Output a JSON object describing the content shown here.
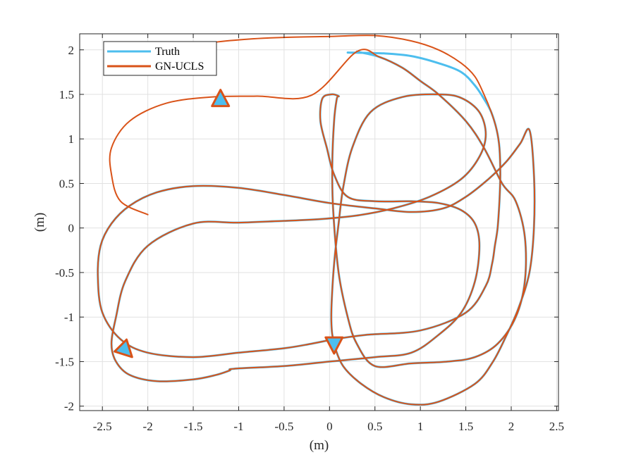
{
  "chart_data": {
    "type": "line",
    "title": "",
    "xlabel": "(m)",
    "ylabel": "(m)",
    "xlim": [
      -2.75,
      2.52
    ],
    "ylim": [
      -2.05,
      2.18
    ],
    "xticks": [
      -2.5,
      -2,
      -1.5,
      -1,
      -0.5,
      0,
      0.5,
      1,
      1.5,
      2,
      2.5
    ],
    "xtick_labels": [
      "-2.5",
      "-2",
      "-1.5",
      "-1",
      "-0.5",
      "0",
      "0.5",
      "1",
      "1.5",
      "2",
      "2.5"
    ],
    "yticks": [
      -2,
      -1.5,
      -1,
      -0.5,
      0,
      0.5,
      1,
      1.5,
      2
    ],
    "ytick_labels": [
      "-2",
      "-1.5",
      "-1",
      "-0.5",
      "0",
      "0.5",
      "1",
      "1.5",
      "2"
    ],
    "grid": true,
    "legend_position": "top-left",
    "colors": {
      "truth": "#4DBEEE",
      "estimate": "#D95319",
      "axes": "#262626",
      "grid": "#e1e1e1"
    },
    "series": [
      {
        "name": "Truth",
        "x": [
          0.2,
          0.6,
          0.9,
          1.2,
          1.45,
          1.6,
          1.7,
          1.78,
          1.84,
          1.87,
          1.88,
          1.87,
          1.85,
          1.82,
          1.79,
          1.72,
          1.5,
          1.0,
          0.4,
          0.05,
          -0.2,
          -0.5,
          -1.0,
          -1.5,
          -2.0,
          -2.3,
          -2.5,
          -2.55,
          -2.52,
          -2.4,
          -2.2,
          -1.9,
          -1.5,
          -1.0,
          -0.5,
          0.0,
          0.5,
          0.9,
          1.25,
          1.5,
          1.75,
          1.95,
          2.1,
          2.2,
          2.25,
          2.25,
          2.2,
          2.08,
          1.95,
          1.8,
          1.6,
          1.2,
          0.9,
          0.6,
          0.35,
          0.15,
          0.05,
          0.02,
          0.03,
          0.06,
          0.1,
          0.15,
          0.25,
          0.45,
          0.8,
          1.2,
          1.45,
          1.65,
          1.72,
          1.65,
          1.45,
          1.1,
          0.7,
          0.3,
          -0.1,
          -0.5,
          -1.0,
          -1.5,
          -2.0,
          -2.25,
          -2.35,
          -2.4,
          -2.35,
          -2.2,
          -1.9,
          -1.5,
          -1.25,
          -1.1,
          -1.05,
          -0.5,
          0.0,
          0.5,
          0.9,
          1.2,
          1.45,
          1.6,
          1.65,
          1.6,
          1.45,
          1.2,
          0.9,
          0.5,
          0.2,
          0.05,
          -0.03,
          -0.1,
          -0.08,
          0.02,
          0.1,
          0.08,
          0.05,
          0.03,
          0.04,
          0.1,
          0.2,
          0.3,
          0.5,
          0.9,
          1.3,
          1.6,
          1.85,
          2.05,
          2.15,
          2.15,
          2.05,
          1.9,
          1.7,
          1.5,
          1.2,
          1.0,
          0.8,
          0.55,
          0.3
        ],
        "y": [
          1.97,
          1.96,
          1.93,
          1.85,
          1.75,
          1.6,
          1.45,
          1.3,
          1.1,
          0.9,
          0.6,
          0.3,
          0.0,
          -0.2,
          -0.4,
          -0.65,
          -0.95,
          -1.15,
          -1.2,
          -1.25,
          -1.3,
          -1.35,
          -1.4,
          -1.45,
          -1.4,
          -1.25,
          -0.95,
          -0.55,
          -0.2,
          0.05,
          0.25,
          0.4,
          0.47,
          0.45,
          0.37,
          0.28,
          0.22,
          0.18,
          0.22,
          0.35,
          0.55,
          0.75,
          0.95,
          1.1,
          0.6,
          0.0,
          -0.5,
          -0.9,
          -1.2,
          -1.5,
          -1.75,
          -1.95,
          -1.98,
          -1.9,
          -1.75,
          -1.55,
          -1.3,
          -1.05,
          -0.7,
          -0.3,
          0.05,
          0.45,
          0.9,
          1.3,
          1.47,
          1.5,
          1.46,
          1.3,
          1.05,
          0.8,
          0.55,
          0.35,
          0.22,
          0.14,
          0.1,
          0.08,
          0.06,
          0.05,
          -0.2,
          -0.6,
          -1.0,
          -1.3,
          -1.5,
          -1.65,
          -1.72,
          -1.7,
          -1.65,
          -1.6,
          -1.58,
          -1.55,
          -1.5,
          -1.45,
          -1.4,
          -1.2,
          -0.95,
          -0.6,
          -0.2,
          0.05,
          0.2,
          0.28,
          0.3,
          0.3,
          0.35,
          0.6,
          0.9,
          1.2,
          1.45,
          1.5,
          1.48,
          1.45,
          1.2,
          0.7,
          0.2,
          -0.5,
          -1.0,
          -1.3,
          -1.55,
          -1.52,
          -1.5,
          -1.45,
          -1.3,
          -1.0,
          -0.6,
          -0.1,
          0.3,
          0.5,
          0.9,
          1.2,
          1.5,
          1.65,
          1.8,
          1.92,
          1.98
        ]
      },
      {
        "name": "GN-UCLS",
        "x": [
          -1.7,
          -1.3,
          -0.9,
          -0.5,
          0.0,
          0.5,
          0.9,
          1.2,
          1.45,
          1.6,
          1.7,
          1.78,
          1.84,
          1.87,
          1.88,
          1.87,
          1.85,
          1.82,
          1.79,
          1.72,
          1.5,
          1.0,
          0.4,
          0.05,
          -0.2,
          -0.5,
          -1.0,
          -1.5,
          -2.0,
          -2.3,
          -2.5,
          -2.55,
          -2.52,
          -2.4,
          -2.2,
          -1.9,
          -1.5,
          -1.0,
          -0.5,
          0.0,
          0.5,
          0.9,
          1.25,
          1.5,
          1.75,
          1.95,
          2.1,
          2.2,
          2.25,
          2.25,
          2.2,
          2.08,
          1.95,
          1.8,
          1.6,
          1.2,
          0.9,
          0.6,
          0.35,
          0.15,
          0.05,
          0.02,
          0.03,
          0.06,
          0.1,
          0.15,
          0.25,
          0.45,
          0.8,
          1.2,
          1.45,
          1.65,
          1.72,
          1.65,
          1.45,
          1.1,
          0.7,
          0.3,
          -0.1,
          -0.5,
          -1.0,
          -1.5,
          -2.0,
          -2.25,
          -2.35,
          -2.4,
          -2.35,
          -2.2,
          -1.9,
          -1.5,
          -1.25,
          -1.1,
          -1.05,
          -0.5,
          0.0,
          0.5,
          0.9,
          1.2,
          1.45,
          1.6,
          1.65,
          1.6,
          1.45,
          1.2,
          0.9,
          0.5,
          0.2,
          0.05,
          -0.03,
          -0.1,
          -0.08,
          0.02,
          0.1,
          0.08,
          0.05,
          0.03,
          0.04,
          0.1,
          0.2,
          0.3,
          0.5,
          0.9,
          1.3,
          1.6,
          1.85,
          2.05,
          2.15,
          2.15,
          2.05,
          1.9,
          1.7,
          1.5,
          1.2,
          1.0,
          0.8,
          0.55,
          0.3,
          -0.2,
          -0.8,
          -1.3,
          -1.8,
          -2.2,
          -2.4,
          -2.4,
          -2.3,
          -2.0
        ],
        "y": [
          2.0,
          2.08,
          2.12,
          2.14,
          2.15,
          2.16,
          2.1,
          2.0,
          1.85,
          1.7,
          1.5,
          1.3,
          1.1,
          0.9,
          0.6,
          0.3,
          0.0,
          -0.2,
          -0.4,
          -0.65,
          -0.95,
          -1.15,
          -1.2,
          -1.25,
          -1.3,
          -1.35,
          -1.4,
          -1.45,
          -1.4,
          -1.25,
          -0.95,
          -0.55,
          -0.2,
          0.05,
          0.25,
          0.4,
          0.47,
          0.45,
          0.37,
          0.28,
          0.22,
          0.18,
          0.22,
          0.35,
          0.55,
          0.75,
          0.95,
          1.1,
          0.6,
          0.0,
          -0.5,
          -0.9,
          -1.2,
          -1.5,
          -1.75,
          -1.95,
          -1.98,
          -1.9,
          -1.75,
          -1.55,
          -1.3,
          -1.05,
          -0.7,
          -0.3,
          0.05,
          0.45,
          0.9,
          1.3,
          1.47,
          1.5,
          1.46,
          1.3,
          1.05,
          0.8,
          0.55,
          0.35,
          0.22,
          0.14,
          0.1,
          0.08,
          0.06,
          0.05,
          -0.2,
          -0.6,
          -1.0,
          -1.3,
          -1.5,
          -1.65,
          -1.72,
          -1.7,
          -1.65,
          -1.6,
          -1.58,
          -1.55,
          -1.5,
          -1.45,
          -1.4,
          -1.2,
          -0.95,
          -0.6,
          -0.2,
          0.05,
          0.2,
          0.28,
          0.3,
          0.3,
          0.35,
          0.6,
          0.9,
          1.2,
          1.45,
          1.5,
          1.48,
          1.45,
          1.2,
          0.7,
          0.2,
          -0.5,
          -1.0,
          -1.3,
          -1.55,
          -1.52,
          -1.5,
          -1.45,
          -1.3,
          -1.0,
          -0.6,
          -0.1,
          0.3,
          0.5,
          0.9,
          1.2,
          1.5,
          1.65,
          1.8,
          1.92,
          1.98,
          1.49,
          1.48,
          1.47,
          1.4,
          1.2,
          0.9,
          0.6,
          0.3,
          0.15
        ]
      }
    ]
  }
}
